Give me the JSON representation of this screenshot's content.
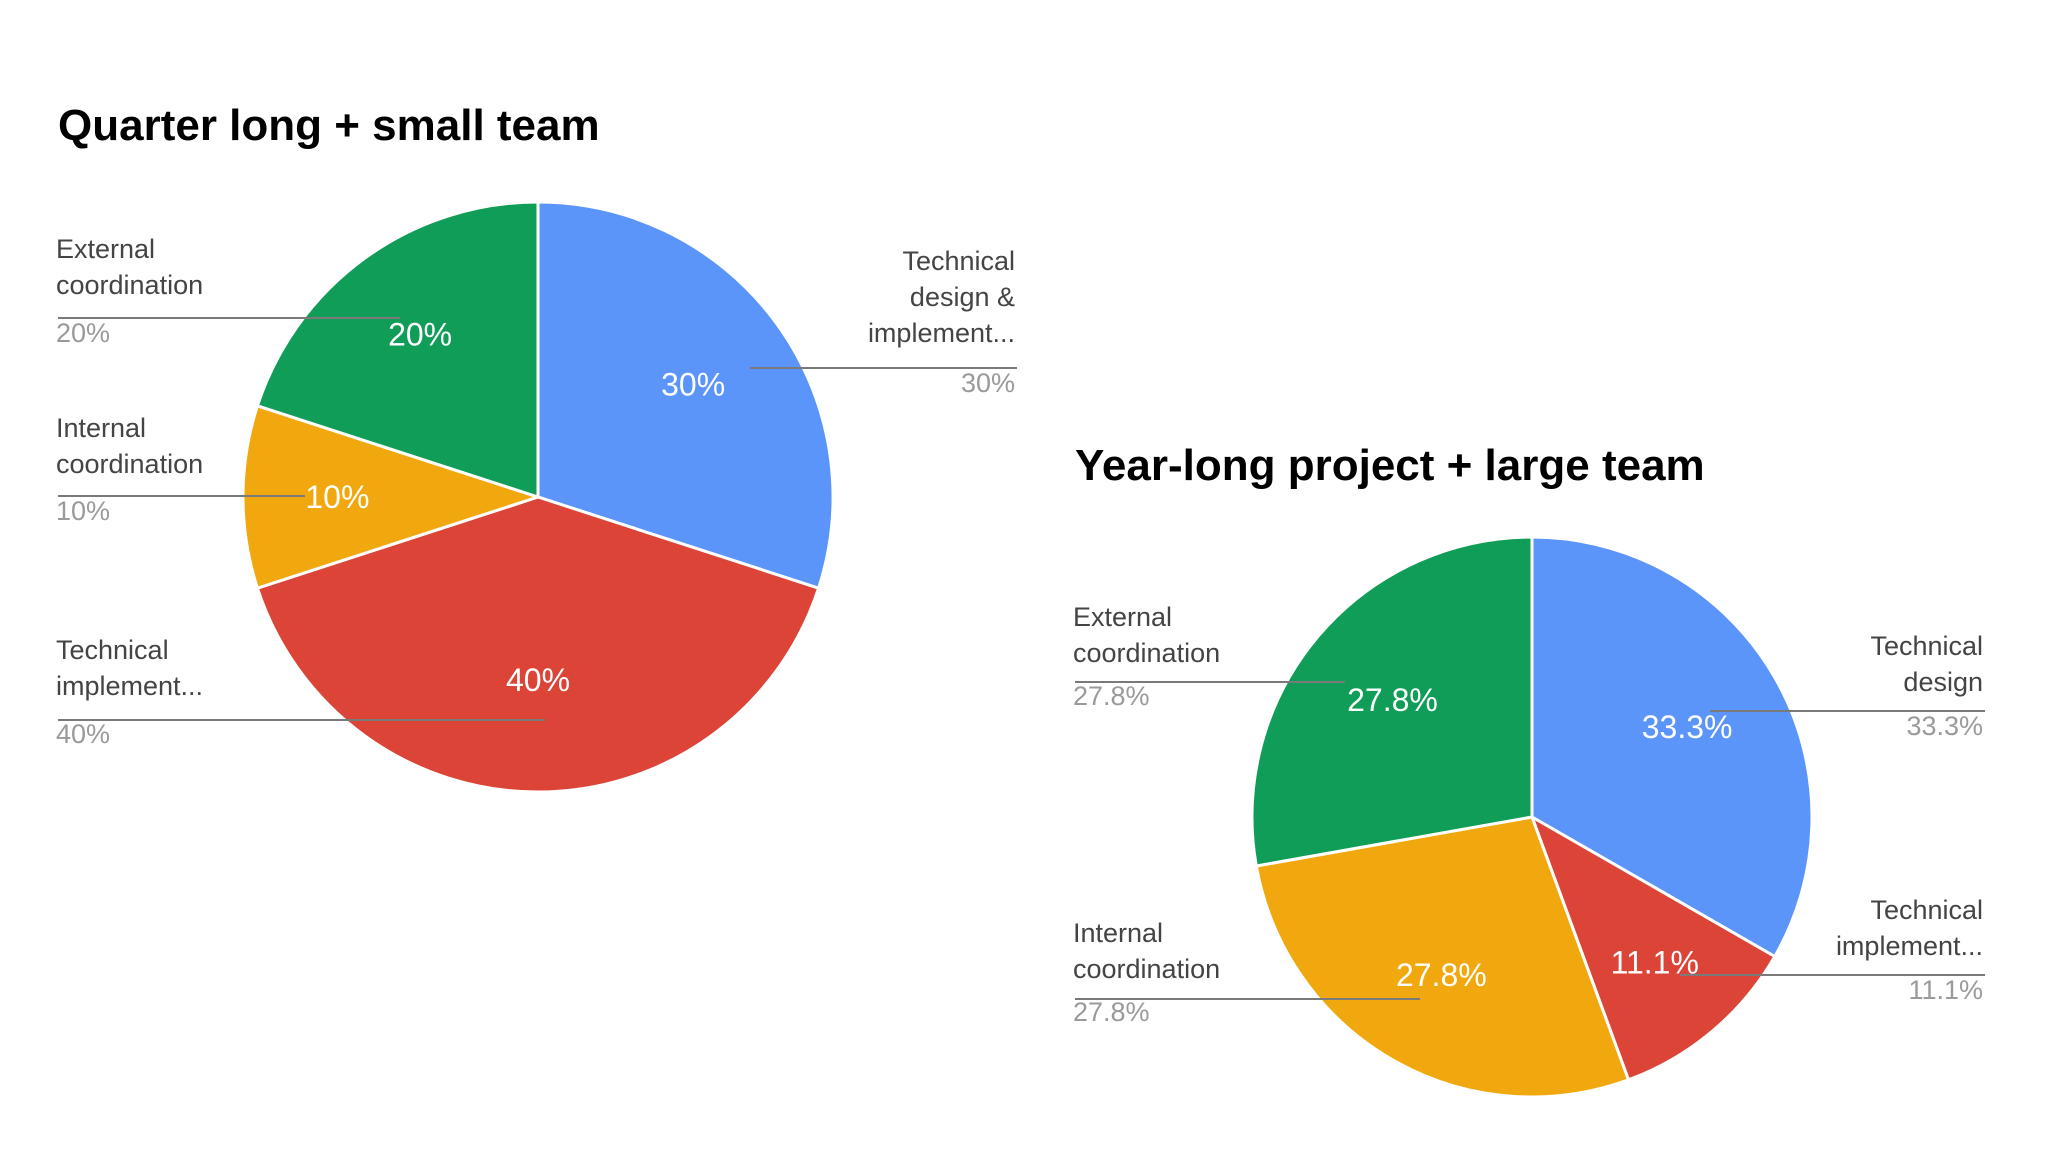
{
  "chart_data": [
    {
      "type": "pie",
      "title": "Quarter long + small team",
      "start_angle_deg": 0,
      "direction": "clockwise",
      "slices": [
        {
          "label": "Technical design & implement...",
          "lines": [
            "Technical",
            "design &",
            "implement..."
          ],
          "value": 30,
          "value_label": "30%",
          "color": "#5b95f9",
          "callout_side": "right"
        },
        {
          "label": "Technical implement...",
          "lines": [
            "Technical",
            "implement..."
          ],
          "value": 40,
          "value_label": "40%",
          "color": "#db4437",
          "callout_side": "left"
        },
        {
          "label": "Internal coordination",
          "lines": [
            "Internal",
            "coordination"
          ],
          "value": 10,
          "value_label": "10%",
          "color": "#f1a80e",
          "callout_side": "left"
        },
        {
          "label": "External coordination",
          "lines": [
            "External",
            "coordination"
          ],
          "value": 20,
          "value_label": "20%",
          "color": "#109d58",
          "callout_side": "left"
        }
      ]
    },
    {
      "type": "pie",
      "title": "Year-long project + large team",
      "start_angle_deg": 0,
      "direction": "clockwise",
      "slices": [
        {
          "label": "Technical design",
          "lines": [
            "Technical",
            "design"
          ],
          "value": 33.3,
          "value_label": "33.3%",
          "color": "#5b95f9",
          "callout_side": "right"
        },
        {
          "label": "Technical implement...",
          "lines": [
            "Technical",
            "implement..."
          ],
          "value": 11.1,
          "value_label": "11.1%",
          "color": "#db4437",
          "callout_side": "right"
        },
        {
          "label": "Internal coordination",
          "lines": [
            "Internal",
            "coordination"
          ],
          "value": 27.8,
          "value_label": "27.8%",
          "color": "#f1a80e",
          "callout_side": "left"
        },
        {
          "label": "External coordination",
          "lines": [
            "External",
            "coordination"
          ],
          "value": 27.8,
          "value_label": "27.8%",
          "color": "#109d58",
          "callout_side": "left"
        }
      ]
    }
  ]
}
